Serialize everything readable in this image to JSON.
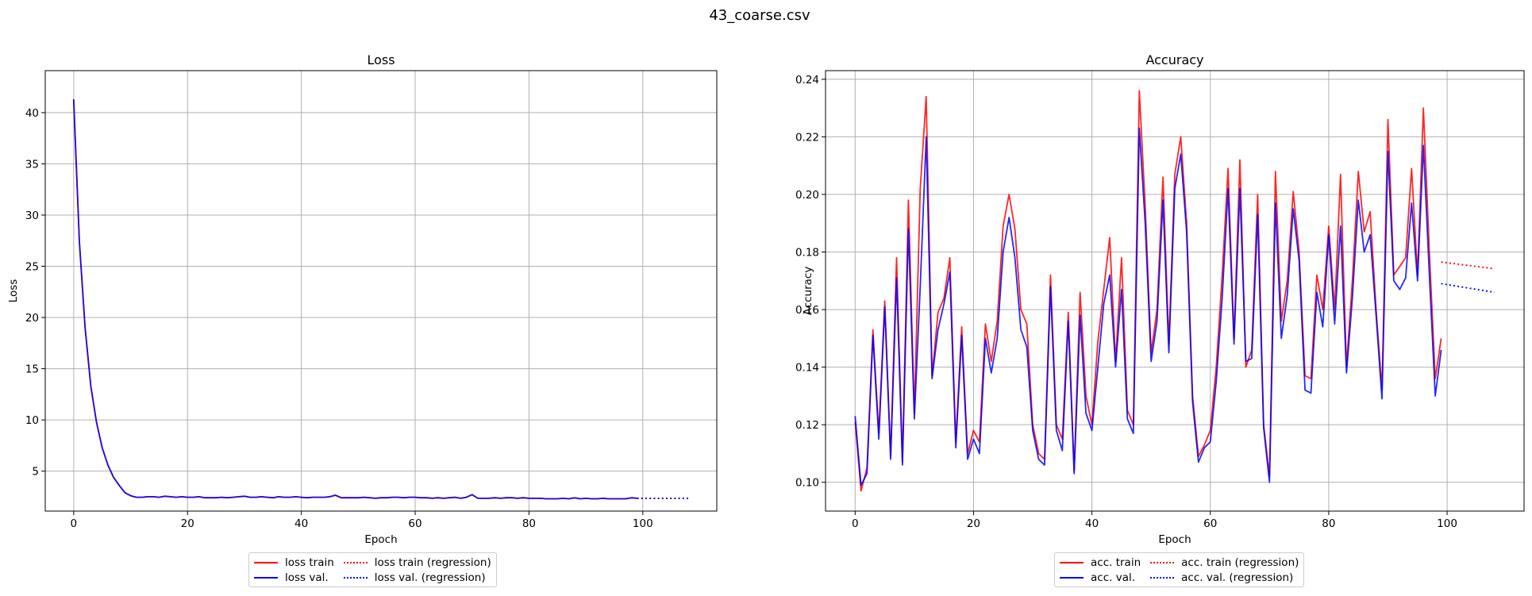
{
  "suptitle": "43_coarse.csv",
  "colors": {
    "train": "#ff0000",
    "val": "#0000ff"
  },
  "chart_data": [
    {
      "type": "line",
      "title": "Loss",
      "xlabel": "Epoch",
      "ylabel": "Loss",
      "xlim": [
        -5,
        113
      ],
      "ylim": [
        1.1,
        44.1
      ],
      "xticks": [
        0,
        20,
        40,
        60,
        80,
        100
      ],
      "xtick_labels": [
        "0",
        "20",
        "40",
        "60",
        "80",
        "100"
      ],
      "yticks": [
        5,
        10,
        15,
        20,
        25,
        30,
        35,
        40
      ],
      "ytick_labels": [
        "5",
        "10",
        "15",
        "20",
        "25",
        "30",
        "35",
        "40"
      ],
      "grid": true,
      "legend_position": "below center",
      "series": [
        {
          "name": "loss train",
          "style": "solid",
          "color": "#ff0000",
          "x": [
            0,
            1,
            2,
            3,
            4,
            5,
            6,
            7,
            8,
            9,
            10,
            11,
            12,
            13,
            14,
            15,
            16,
            17,
            18,
            19,
            20,
            21,
            22,
            23,
            24,
            25,
            26,
            27,
            28,
            29,
            30,
            31,
            32,
            33,
            34,
            35,
            36,
            37,
            38,
            39,
            40,
            41,
            42,
            43,
            44,
            45,
            46,
            47,
            48,
            49,
            50,
            51,
            52,
            53,
            54,
            55,
            56,
            57,
            58,
            59,
            60,
            61,
            62,
            63,
            64,
            65,
            66,
            67,
            68,
            69,
            70,
            71,
            72,
            73,
            74,
            75,
            76,
            77,
            78,
            79,
            80,
            81,
            82,
            83,
            84,
            85,
            86,
            87,
            88,
            89,
            90,
            91,
            92,
            93,
            94,
            95,
            96,
            97,
            98,
            99
          ],
          "y": [
            41.3,
            27.4,
            19.0,
            13.3,
            9.8,
            7.3,
            5.6,
            4.4,
            3.6,
            2.9,
            2.6,
            2.45,
            2.45,
            2.5,
            2.5,
            2.45,
            2.55,
            2.5,
            2.45,
            2.5,
            2.45,
            2.45,
            2.5,
            2.4,
            2.4,
            2.4,
            2.45,
            2.4,
            2.45,
            2.5,
            2.55,
            2.45,
            2.45,
            2.5,
            2.45,
            2.4,
            2.5,
            2.45,
            2.45,
            2.5,
            2.45,
            2.4,
            2.45,
            2.45,
            2.45,
            2.5,
            2.65,
            2.4,
            2.4,
            2.4,
            2.4,
            2.45,
            2.4,
            2.35,
            2.4,
            2.4,
            2.45,
            2.45,
            2.4,
            2.45,
            2.45,
            2.4,
            2.4,
            2.35,
            2.4,
            2.35,
            2.4,
            2.45,
            2.35,
            2.45,
            2.7,
            2.35,
            2.35,
            2.35,
            2.4,
            2.35,
            2.4,
            2.4,
            2.35,
            2.4,
            2.35,
            2.35,
            2.35,
            2.3,
            2.3,
            2.3,
            2.35,
            2.3,
            2.4,
            2.3,
            2.35,
            2.3,
            2.3,
            2.35,
            2.3,
            2.3,
            2.3,
            2.3,
            2.4,
            2.35
          ]
        },
        {
          "name": "loss val.",
          "style": "solid",
          "color": "#0000ff",
          "x": [
            0,
            1,
            2,
            3,
            4,
            5,
            6,
            7,
            8,
            9,
            10,
            11,
            12,
            13,
            14,
            15,
            16,
            17,
            18,
            19,
            20,
            21,
            22,
            23,
            24,
            25,
            26,
            27,
            28,
            29,
            30,
            31,
            32,
            33,
            34,
            35,
            36,
            37,
            38,
            39,
            40,
            41,
            42,
            43,
            44,
            45,
            46,
            47,
            48,
            49,
            50,
            51,
            52,
            53,
            54,
            55,
            56,
            57,
            58,
            59,
            60,
            61,
            62,
            63,
            64,
            65,
            66,
            67,
            68,
            69,
            70,
            71,
            72,
            73,
            74,
            75,
            76,
            77,
            78,
            79,
            80,
            81,
            82,
            83,
            84,
            85,
            86,
            87,
            88,
            89,
            90,
            91,
            92,
            93,
            94,
            95,
            96,
            97,
            98,
            99
          ],
          "y": [
            41.3,
            27.4,
            19.0,
            13.3,
            9.8,
            7.3,
            5.6,
            4.4,
            3.6,
            2.9,
            2.6,
            2.45,
            2.45,
            2.5,
            2.5,
            2.45,
            2.55,
            2.5,
            2.45,
            2.5,
            2.45,
            2.45,
            2.5,
            2.4,
            2.4,
            2.4,
            2.45,
            2.4,
            2.45,
            2.5,
            2.55,
            2.45,
            2.45,
            2.5,
            2.45,
            2.4,
            2.5,
            2.45,
            2.45,
            2.5,
            2.45,
            2.4,
            2.45,
            2.45,
            2.45,
            2.5,
            2.65,
            2.4,
            2.4,
            2.4,
            2.4,
            2.45,
            2.4,
            2.35,
            2.4,
            2.4,
            2.45,
            2.45,
            2.4,
            2.45,
            2.45,
            2.4,
            2.4,
            2.35,
            2.4,
            2.35,
            2.4,
            2.45,
            2.35,
            2.45,
            2.7,
            2.35,
            2.35,
            2.35,
            2.4,
            2.35,
            2.4,
            2.4,
            2.35,
            2.4,
            2.35,
            2.35,
            2.35,
            2.3,
            2.3,
            2.3,
            2.35,
            2.3,
            2.4,
            2.3,
            2.35,
            2.3,
            2.3,
            2.35,
            2.3,
            2.3,
            2.3,
            2.3,
            2.4,
            2.35
          ]
        },
        {
          "name": "loss train (regression)",
          "style": "dotted",
          "color": "#ff0000",
          "x": [
            99,
            108
          ],
          "y": [
            2.35,
            2.35
          ]
        },
        {
          "name": "loss val. (regression)",
          "style": "dotted",
          "color": "#0000ff",
          "x": [
            99,
            108
          ],
          "y": [
            2.35,
            2.35
          ]
        }
      ]
    },
    {
      "type": "line",
      "title": "Accuracy",
      "xlabel": "Epoch",
      "ylabel": "Accuracy",
      "xlim": [
        -5,
        113
      ],
      "ylim": [
        0.09,
        0.243
      ],
      "xticks": [
        0,
        20,
        40,
        60,
        80,
        100
      ],
      "xtick_labels": [
        "0",
        "20",
        "40",
        "60",
        "80",
        "100"
      ],
      "yticks": [
        0.1,
        0.12,
        0.14,
        0.16,
        0.18,
        0.2,
        0.22,
        0.24
      ],
      "ytick_labels": [
        "0.10",
        "0.12",
        "0.14",
        "0.16",
        "0.18",
        "0.20",
        "0.22",
        "0.24"
      ],
      "grid": true,
      "legend_position": "below center",
      "series": [
        {
          "name": "acc. train",
          "style": "solid",
          "color": "#ff0000",
          "x": [
            0,
            1,
            2,
            3,
            4,
            5,
            6,
            7,
            8,
            9,
            10,
            11,
            12,
            13,
            14,
            15,
            16,
            17,
            18,
            19,
            20,
            21,
            22,
            23,
            24,
            25,
            26,
            27,
            28,
            29,
            30,
            31,
            32,
            33,
            34,
            35,
            36,
            37,
            38,
            39,
            40,
            41,
            42,
            43,
            44,
            45,
            46,
            47,
            48,
            49,
            50,
            51,
            52,
            53,
            54,
            55,
            56,
            57,
            58,
            59,
            60,
            61,
            62,
            63,
            64,
            65,
            66,
            67,
            68,
            69,
            70,
            71,
            72,
            73,
            74,
            75,
            76,
            77,
            78,
            79,
            80,
            81,
            82,
            83,
            84,
            85,
            86,
            87,
            88,
            89,
            90,
            91,
            92,
            93,
            94,
            95,
            96,
            97,
            98,
            99
          ],
          "y": [
            0.121,
            0.097,
            0.105,
            0.153,
            0.117,
            0.163,
            0.109,
            0.178,
            0.107,
            0.198,
            0.124,
            0.202,
            0.234,
            0.137,
            0.159,
            0.164,
            0.178,
            0.114,
            0.154,
            0.11,
            0.118,
            0.114,
            0.155,
            0.142,
            0.156,
            0.189,
            0.2,
            0.188,
            0.16,
            0.155,
            0.12,
            0.11,
            0.108,
            0.172,
            0.12,
            0.115,
            0.159,
            0.104,
            0.166,
            0.13,
            0.12,
            0.149,
            0.167,
            0.185,
            0.142,
            0.178,
            0.125,
            0.12,
            0.236,
            0.196,
            0.145,
            0.16,
            0.206,
            0.148,
            0.207,
            0.22,
            0.19,
            0.13,
            0.109,
            0.113,
            0.118,
            0.14,
            0.172,
            0.209,
            0.15,
            0.212,
            0.14,
            0.146,
            0.2,
            0.12,
            0.102,
            0.208,
            0.156,
            0.17,
            0.201,
            0.18,
            0.137,
            0.136,
            0.172,
            0.16,
            0.189,
            0.16,
            0.207,
            0.14,
            0.17,
            0.208,
            0.187,
            0.194,
            0.16,
            0.132,
            0.226,
            0.172,
            0.175,
            0.178,
            0.209,
            0.172,
            0.23,
            0.18,
            0.136,
            0.15
          ]
        },
        {
          "name": "acc. val.",
          "style": "solid",
          "color": "#0000ff",
          "x": [
            0,
            1,
            2,
            3,
            4,
            5,
            6,
            7,
            8,
            9,
            10,
            11,
            12,
            13,
            14,
            15,
            16,
            17,
            18,
            19,
            20,
            21,
            22,
            23,
            24,
            25,
            26,
            27,
            28,
            29,
            30,
            31,
            32,
            33,
            34,
            35,
            36,
            37,
            38,
            39,
            40,
            41,
            42,
            43,
            44,
            45,
            46,
            47,
            48,
            49,
            50,
            51,
            52,
            53,
            54,
            55,
            56,
            57,
            58,
            59,
            60,
            61,
            62,
            63,
            64,
            65,
            66,
            67,
            68,
            69,
            70,
            71,
            72,
            73,
            74,
            75,
            76,
            77,
            78,
            79,
            80,
            81,
            82,
            83,
            84,
            85,
            86,
            87,
            88,
            89,
            90,
            91,
            92,
            93,
            94,
            95,
            96,
            97,
            98,
            99
          ],
          "y": [
            0.123,
            0.099,
            0.103,
            0.151,
            0.115,
            0.161,
            0.108,
            0.171,
            0.106,
            0.188,
            0.122,
            0.168,
            0.22,
            0.136,
            0.153,
            0.162,
            0.173,
            0.112,
            0.151,
            0.108,
            0.115,
            0.11,
            0.15,
            0.138,
            0.15,
            0.18,
            0.192,
            0.178,
            0.153,
            0.147,
            0.118,
            0.108,
            0.106,
            0.168,
            0.118,
            0.111,
            0.156,
            0.103,
            0.158,
            0.124,
            0.118,
            0.14,
            0.162,
            0.172,
            0.14,
            0.167,
            0.122,
            0.117,
            0.223,
            0.19,
            0.142,
            0.156,
            0.198,
            0.145,
            0.202,
            0.214,
            0.187,
            0.128,
            0.107,
            0.112,
            0.114,
            0.135,
            0.164,
            0.202,
            0.148,
            0.202,
            0.142,
            0.143,
            0.193,
            0.119,
            0.1,
            0.197,
            0.15,
            0.165,
            0.195,
            0.177,
            0.132,
            0.131,
            0.166,
            0.154,
            0.186,
            0.155,
            0.189,
            0.138,
            0.164,
            0.198,
            0.18,
            0.186,
            0.158,
            0.129,
            0.215,
            0.17,
            0.167,
            0.171,
            0.197,
            0.17,
            0.217,
            0.172,
            0.13,
            0.146
          ]
        },
        {
          "name": "acc. train (regression)",
          "style": "dotted",
          "color": "#ff0000",
          "x": [
            99,
            108
          ],
          "y": [
            0.1765,
            0.1742
          ]
        },
        {
          "name": "acc. val. (regression)",
          "style": "dotted",
          "color": "#0000ff",
          "x": [
            99,
            108
          ],
          "y": [
            0.169,
            0.166
          ]
        }
      ]
    }
  ]
}
